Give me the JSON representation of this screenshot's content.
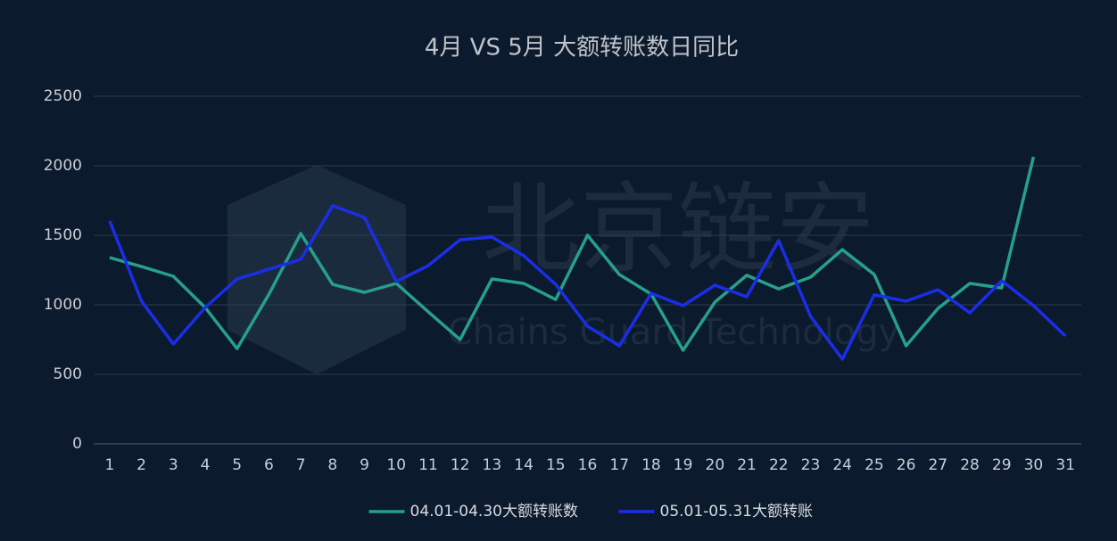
{
  "chart_data": {
    "type": "line",
    "title": "4月 VS 5月 大额转账数日同比",
    "watermark": {
      "title": "北京链安",
      "subtitle": "Chains Guard Technology"
    },
    "categories": [
      "1",
      "2",
      "3",
      "4",
      "5",
      "6",
      "7",
      "8",
      "9",
      "10",
      "11",
      "12",
      "13",
      "14",
      "15",
      "16",
      "17",
      "18",
      "19",
      "20",
      "21",
      "22",
      "23",
      "24",
      "25",
      "26",
      "27",
      "28",
      "29",
      "30",
      "31"
    ],
    "series": [
      {
        "name": "04.01-04.30大额转账数",
        "color": "#26a08a",
        "values": [
          1340,
          1275,
          1205,
          980,
          685,
          1075,
          1513,
          1147,
          1090,
          1154,
          950,
          750,
          1186,
          1154,
          1038,
          1500,
          1218,
          1077,
          673,
          1019,
          1212,
          1115,
          1199,
          1397,
          1218,
          705,
          974,
          1154,
          1122,
          2064,
          null
        ]
      },
      {
        "name": "05.01-05.31大额转账",
        "color": "#1a2ee6",
        "values": [
          1603,
          1026,
          718,
          981,
          1186,
          1256,
          1327,
          1712,
          1628,
          1167,
          1282,
          1468,
          1487,
          1353,
          1147,
          846,
          705,
          1083,
          994,
          1141,
          1058,
          1462,
          917,
          609,
          1071,
          1026,
          1109,
          942,
          1173,
          994,
          776
        ]
      }
    ],
    "ylim": [
      0,
      2500
    ],
    "yticks": [
      0,
      500,
      1000,
      1500,
      2000,
      2500
    ],
    "grid": true,
    "legend": "bottom"
  }
}
